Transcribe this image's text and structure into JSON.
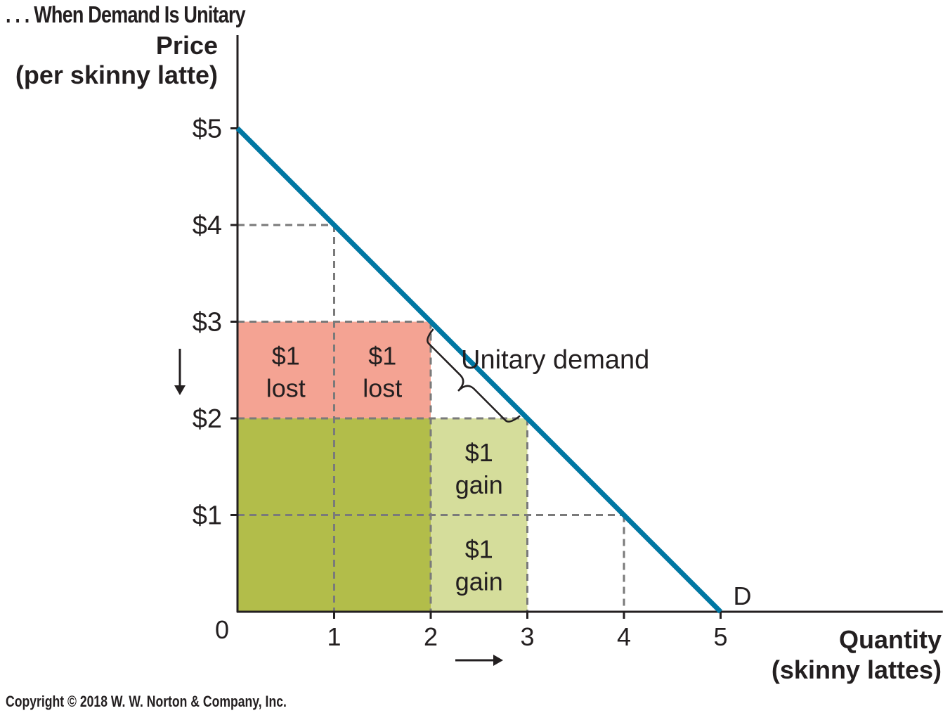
{
  "chart_data": {
    "type": "line",
    "title": ". . . When Demand Is Unitary",
    "ylabel_lines": [
      "Price",
      "(per skinny latte)"
    ],
    "xlabel_lines": [
      "Quantity",
      "(skinny lattes)"
    ],
    "origin_label": "0",
    "x_ticks": [
      "1",
      "2",
      "3",
      "4",
      "5"
    ],
    "x_tick_values": [
      1,
      2,
      3,
      4,
      5
    ],
    "y_ticks": [
      "$1",
      "$2",
      "$3",
      "$4",
      "$5"
    ],
    "y_tick_values": [
      1,
      2,
      3,
      4,
      5
    ],
    "xlim": [
      0,
      7.3
    ],
    "ylim": [
      0,
      5
    ],
    "series": [
      {
        "name": "D",
        "x": [
          0,
          5
        ],
        "y": [
          5,
          0
        ],
        "color": "#0077a3"
      }
    ],
    "reference_points": [
      {
        "x": 1,
        "y": 4
      },
      {
        "x": 2,
        "y": 3
      },
      {
        "x": 3,
        "y": 2
      },
      {
        "x": 4,
        "y": 1
      }
    ],
    "regions": [
      {
        "x": [
          0,
          1
        ],
        "y": [
          2,
          3
        ],
        "label_lines": [
          "$1",
          "lost"
        ],
        "color": "#f4a393"
      },
      {
        "x": [
          1,
          2
        ],
        "y": [
          2,
          3
        ],
        "label_lines": [
          "$1",
          "lost"
        ],
        "color": "#f4a393"
      },
      {
        "x": [
          2,
          3
        ],
        "y": [
          1,
          2
        ],
        "label_lines": [
          "$1",
          "gain"
        ],
        "color": "#d5dd9b"
      },
      {
        "x": [
          2,
          3
        ],
        "y": [
          0,
          1
        ],
        "label_lines": [
          "$1",
          "gain"
        ],
        "color": "#d5dd9b"
      },
      {
        "x": [
          0,
          2
        ],
        "y": [
          0,
          2
        ],
        "label_lines": [],
        "color": "#b2bd4a"
      }
    ],
    "annotations": [
      {
        "text": "Unitary demand",
        "from": [
          2,
          3
        ],
        "to": [
          3,
          2
        ]
      }
    ],
    "arrows": [
      "price-down",
      "quantity-right"
    ],
    "grid": false,
    "colors": {
      "axis": "#231f20",
      "dashed": "#7a7a7a",
      "demand": "#0077a3"
    }
  },
  "copyright": "Copyright © 2018 W. W. Norton & Company, Inc."
}
